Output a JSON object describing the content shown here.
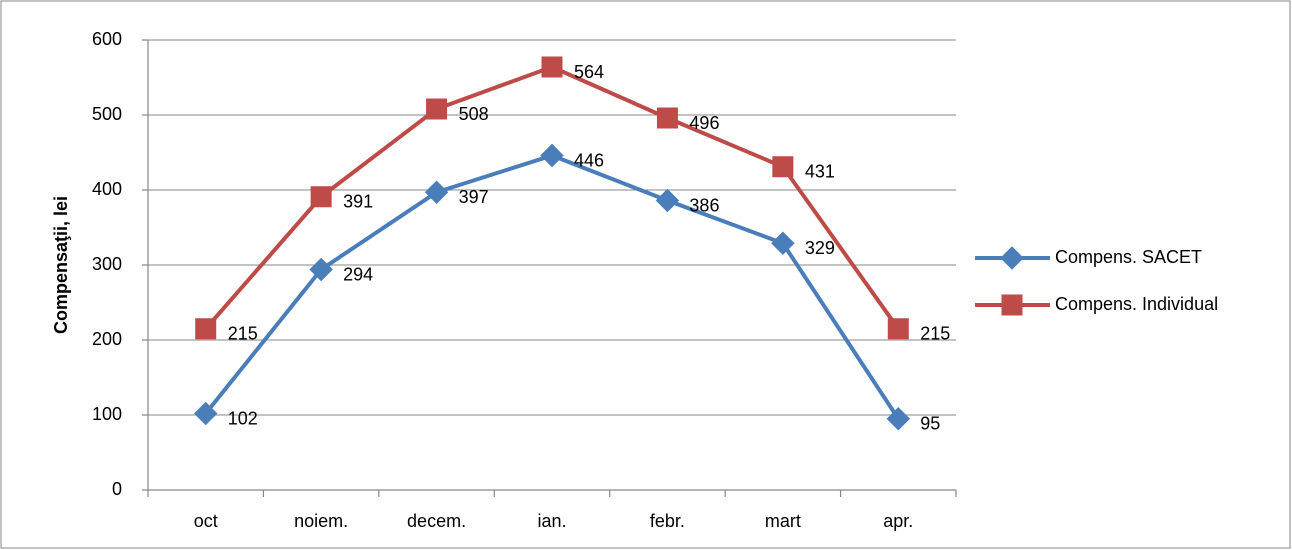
{
  "chart_data": {
    "type": "line",
    "ylabel": "Compensaţii, lei",
    "categories": [
      "oct",
      "noiem.",
      "decem.",
      "ian.",
      "febr.",
      "mart",
      "apr."
    ],
    "series": [
      {
        "name": "Compens. SACET",
        "color": "#4a7ebb",
        "marker": "diamond",
        "values": [
          102,
          294,
          397,
          446,
          386,
          329,
          95
        ]
      },
      {
        "name": "Compens. Individual",
        "color": "#be4b48",
        "marker": "square",
        "values": [
          215,
          391,
          508,
          564,
          496,
          431,
          215
        ]
      }
    ],
    "ylim": [
      0,
      600
    ],
    "yticks": [
      0,
      100,
      200,
      300,
      400,
      500,
      600
    ],
    "grid": true,
    "legend": "right"
  }
}
